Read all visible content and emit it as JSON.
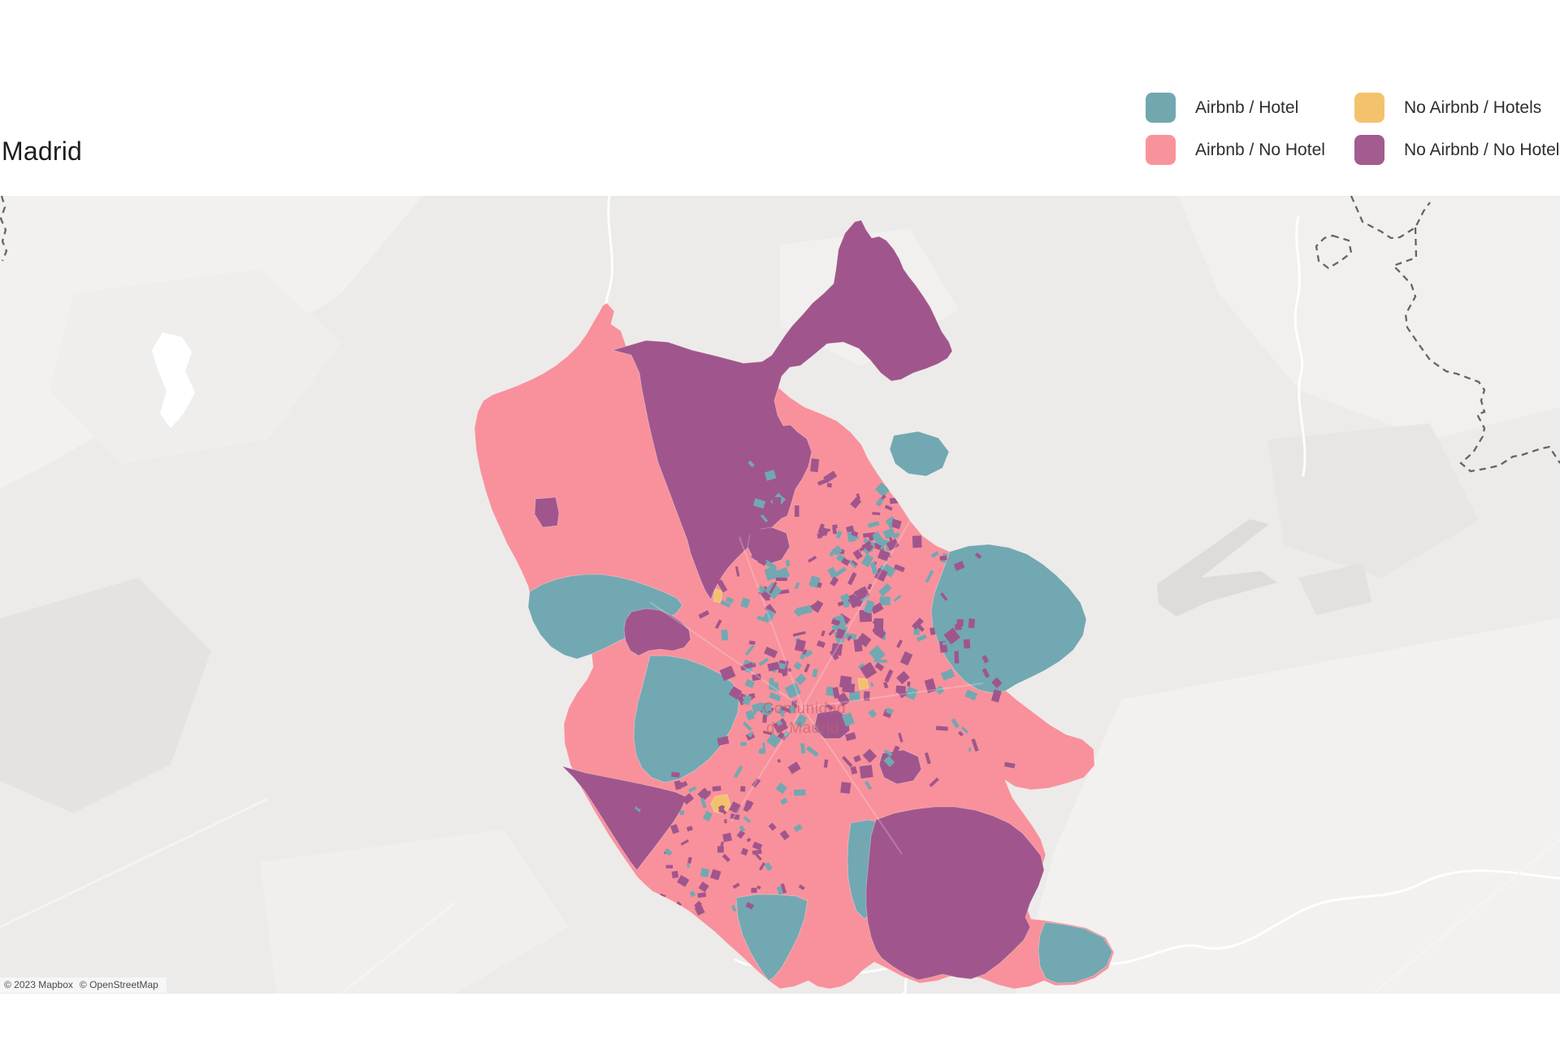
{
  "header": {
    "title": "Madrid"
  },
  "legend": {
    "items": [
      {
        "id": "airbnb_hotel",
        "label": "Airbnb / Hotel",
        "color": "#73A7B0"
      },
      {
        "id": "airbnb_no_hotel",
        "label": "Airbnb / No Hotel",
        "color": "#F9939B"
      },
      {
        "id": "no_airbnb_hotels",
        "label": "No Airbnb / Hotels",
        "color": "#F4C26D"
      },
      {
        "id": "no_airbnb_no_hotel",
        "label": "No Airbnb / No Hotel",
        "color": "#A25C8F"
      }
    ]
  },
  "map": {
    "background": "#ECEBEA",
    "place_label_line1": "Comunidad",
    "place_label_line2": "de Madrid",
    "attribution": {
      "mapbox": "© 2023 Mapbox",
      "osm": "© OpenStreetMap"
    },
    "categories": {
      "airbnb_hotel": "#72A8B1",
      "airbnb_no_hotel": "#F8919B",
      "no_airbnb_hotels": "#F2C26B",
      "no_airbnb_no_hotel": "#A0568C"
    },
    "regions": [
      {
        "name": "community-base",
        "category": "airbnb_no_hotel"
      },
      {
        "name": "sierra-norte",
        "category": "no_airbnb_no_hotel"
      },
      {
        "name": "teal-west-band",
        "category": "airbnb_hotel"
      },
      {
        "name": "purple-in-west-band",
        "category": "no_airbnb_no_hotel"
      },
      {
        "name": "teal-west-big",
        "category": "airbnb_hotel"
      },
      {
        "name": "purple-southwest",
        "category": "no_airbnb_no_hotel"
      },
      {
        "name": "teal-east-big",
        "category": "airbnb_hotel"
      },
      {
        "name": "teal-northeast",
        "category": "airbnb_hotel"
      },
      {
        "name": "teal-south-wedge",
        "category": "airbnb_hotel"
      },
      {
        "name": "teal-south-2",
        "category": "airbnb_hotel"
      },
      {
        "name": "purple-southeast",
        "category": "no_airbnb_no_hotel"
      },
      {
        "name": "teal-southeast",
        "category": "airbnb_hotel"
      },
      {
        "name": "purple-west-small",
        "category": "no_airbnb_no_hotel"
      },
      {
        "name": "purple-mid-1",
        "category": "no_airbnb_no_hotel"
      },
      {
        "name": "purple-mid-2",
        "category": "no_airbnb_no_hotel"
      },
      {
        "name": "purple-mid-3",
        "category": "no_airbnb_no_hotel"
      },
      {
        "name": "yellow-spot-1",
        "category": "no_airbnb_hotels"
      },
      {
        "name": "yellow-spot-2",
        "category": "no_airbnb_hotels"
      },
      {
        "name": "yellow-spot-3",
        "category": "no_airbnb_hotels"
      }
    ]
  }
}
